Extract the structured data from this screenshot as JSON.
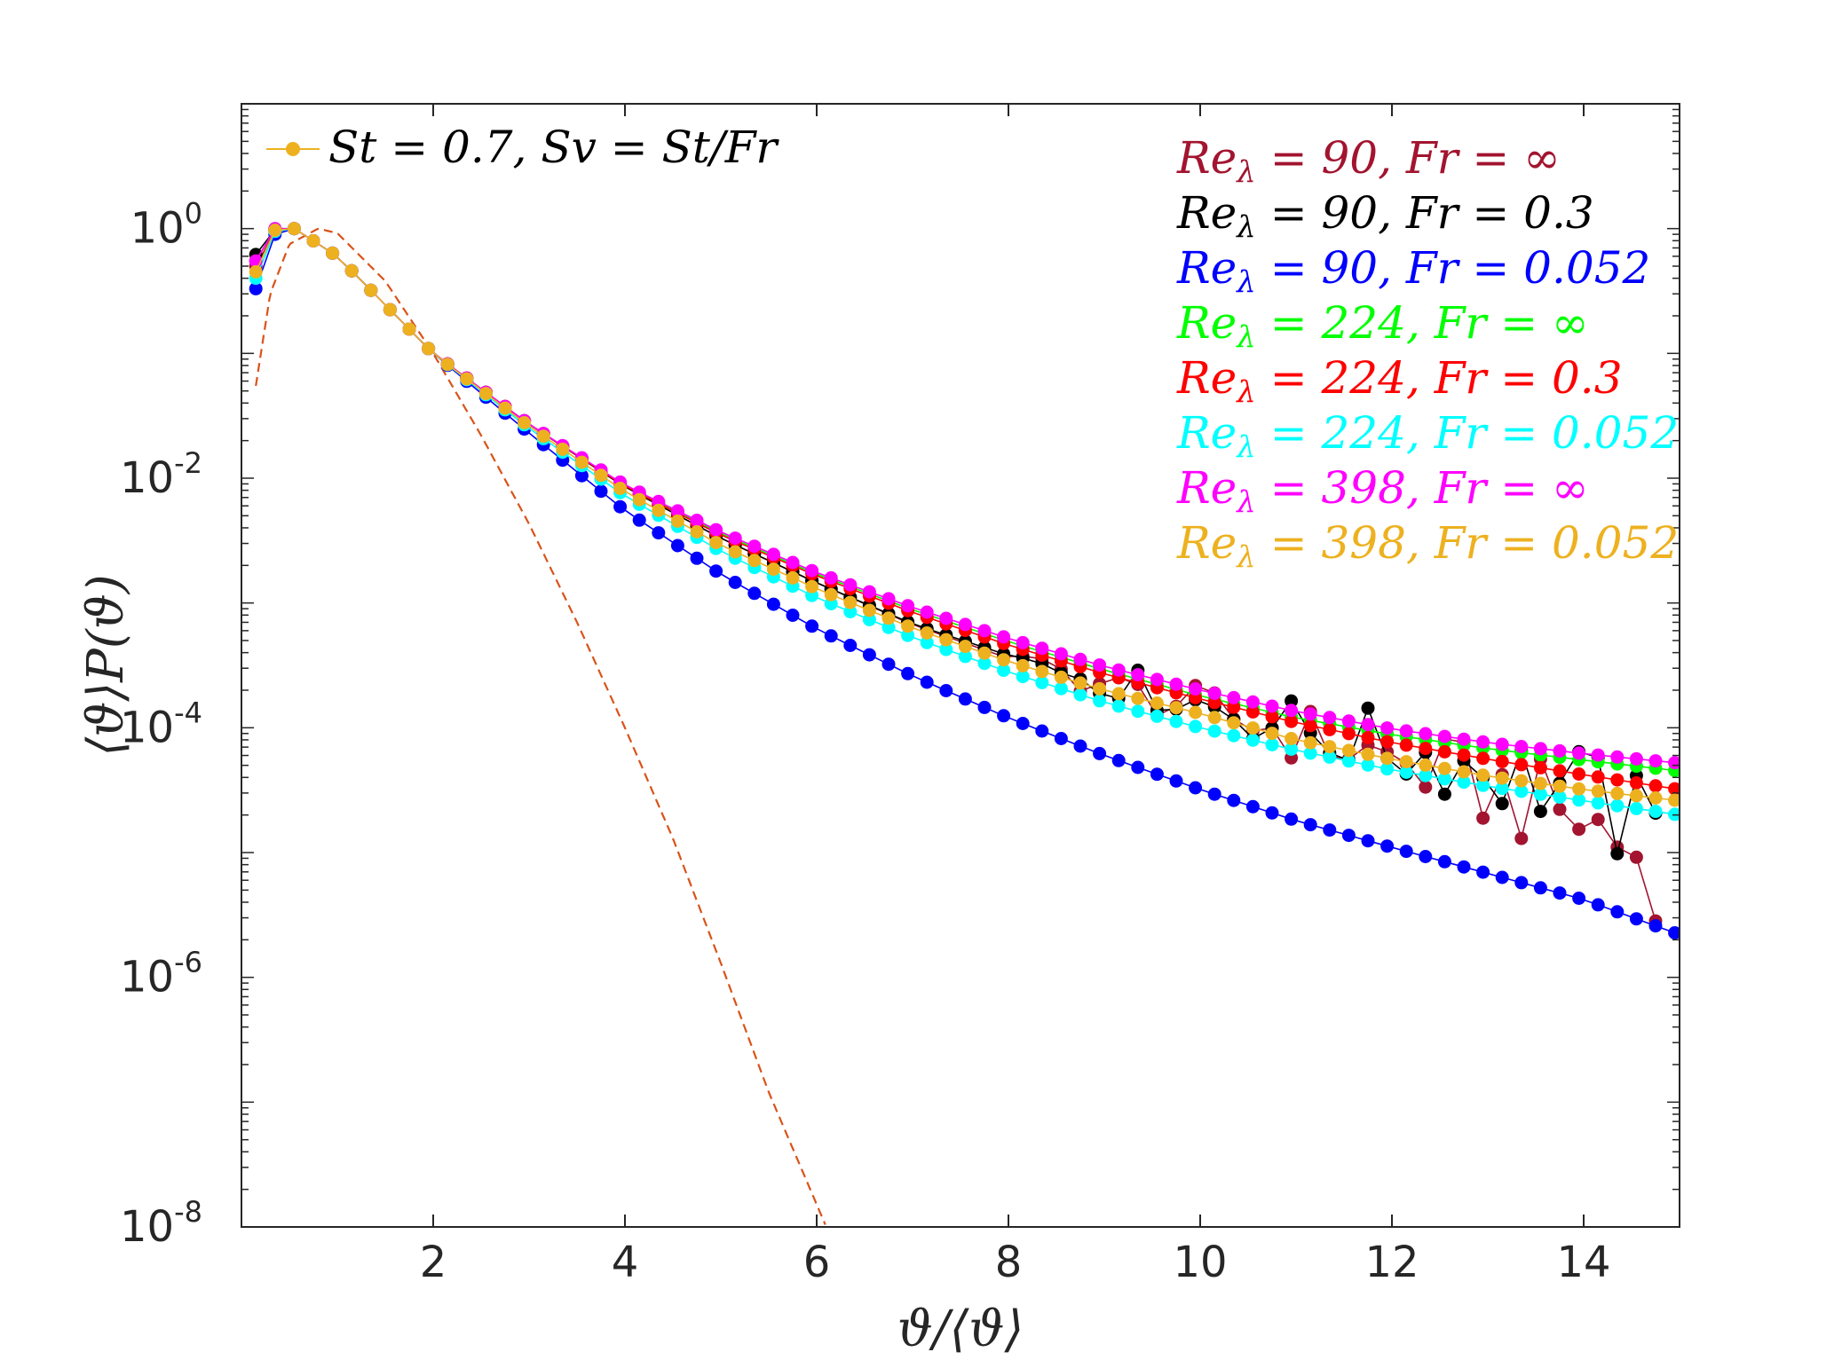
{
  "chart_data": {
    "type": "line",
    "xlabel": "ϑ/⟨ϑ⟩",
    "ylabel": "⟨ϑ⟩P(ϑ)",
    "xscale": "linear",
    "yscale": "log",
    "xlim": [
      0,
      15
    ],
    "ylim": [
      1e-08,
      10
    ],
    "grid": false,
    "box": true,
    "x_ticks": [
      "2",
      "4",
      "6",
      "8",
      "10",
      "12",
      "14"
    ],
    "y_ticks": [
      {
        "base": "10",
        "exp": "0"
      },
      {
        "base": "10",
        "exp": "-2"
      },
      {
        "base": "10",
        "exp": "-4"
      },
      {
        "base": "10",
        "exp": "-6"
      },
      {
        "base": "10",
        "exp": "-8"
      }
    ],
    "legend": {
      "position": "top-left",
      "entry": "St = 0.7, Sv = St/Fr",
      "color": "#EDB120"
    },
    "annotation_position": "top-right",
    "series": [
      {
        "name": "Re_λ = 90, Fr = ∞",
        "color": "#A2142F",
        "noisy": true,
        "anchors": [
          [
            0.15,
            0.5
          ],
          [
            0.35,
            0.95
          ],
          [
            0.55,
            1.0
          ],
          [
            1,
            0.6
          ],
          [
            2,
            0.1
          ],
          [
            3,
            0.027
          ],
          [
            4,
            0.0085
          ],
          [
            5,
            0.0033
          ],
          [
            6,
            0.00145
          ],
          [
            7,
            0.00067
          ],
          [
            8,
            0.00036
          ],
          [
            9,
            0.00022
          ],
          [
            10,
            0.00014
          ],
          [
            11,
            9e-05
          ],
          [
            12,
            5.5e-05
          ],
          [
            13,
            3.3e-05
          ],
          [
            14,
            1.8e-05
          ],
          [
            14.8,
            7.5e-06
          ]
        ]
      },
      {
        "name": "Re_λ = 90, Fr = 0.3",
        "color": "#000000",
        "noisy": true,
        "anchors": [
          [
            0.15,
            0.62
          ],
          [
            0.35,
            0.98
          ],
          [
            0.55,
            1.0
          ],
          [
            1,
            0.6
          ],
          [
            2,
            0.1
          ],
          [
            3,
            0.027
          ],
          [
            4,
            0.0085
          ],
          [
            5,
            0.0033
          ],
          [
            6,
            0.00145
          ],
          [
            7,
            0.00068
          ],
          [
            8,
            0.00038
          ],
          [
            9,
            0.00024
          ],
          [
            10,
            0.00016
          ],
          [
            11,
            0.0001
          ],
          [
            12,
            7e-05
          ],
          [
            13,
            4.8e-05
          ],
          [
            14,
            3e-05
          ],
          [
            14.8,
            1.2e-05
          ]
        ]
      },
      {
        "name": "Re_λ = 90, Fr = 0.052",
        "color": "#0000FF",
        "noisy": false,
        "anchors": [
          [
            0.15,
            0.33
          ],
          [
            0.35,
            0.9
          ],
          [
            0.55,
            1.0
          ],
          [
            1,
            0.6
          ],
          [
            2,
            0.1
          ],
          [
            3,
            0.023
          ],
          [
            4,
            0.0055
          ],
          [
            5,
            0.0017
          ],
          [
            6,
            0.00062
          ],
          [
            7,
            0.00026
          ],
          [
            8,
            0.00012
          ],
          [
            9,
            6e-05
          ],
          [
            10,
            3.2e-05
          ],
          [
            11,
            1.8e-05
          ],
          [
            12,
            1.1e-05
          ],
          [
            13,
            6.8e-06
          ],
          [
            14,
            4.2e-06
          ],
          [
            15,
            2.2e-06
          ]
        ]
      },
      {
        "name": "Re_λ = 224, Fr = ∞",
        "color": "#00FF00",
        "noisy": false,
        "anchors": [
          [
            0.15,
            0.55
          ],
          [
            0.35,
            1.0
          ],
          [
            0.55,
            1.0
          ],
          [
            1,
            0.6
          ],
          [
            2,
            0.1
          ],
          [
            3,
            0.027
          ],
          [
            4,
            0.0087
          ],
          [
            5,
            0.0036
          ],
          [
            6,
            0.0017
          ],
          [
            7,
            0.00088
          ],
          [
            8,
            0.00049
          ],
          [
            9,
            0.00029
          ],
          [
            10,
            0.00018
          ],
          [
            11,
            0.00012
          ],
          [
            12,
            8.8e-05
          ],
          [
            13,
            6.8e-05
          ],
          [
            14,
            5.5e-05
          ],
          [
            15,
            4.5e-05
          ]
        ]
      },
      {
        "name": "Re_λ = 224, Fr = 0.3",
        "color": "#FF0000",
        "noisy": false,
        "anchors": [
          [
            0.15,
            0.55
          ],
          [
            0.35,
            0.98
          ],
          [
            0.55,
            1.0
          ],
          [
            1,
            0.6
          ],
          [
            2,
            0.1
          ],
          [
            3,
            0.027
          ],
          [
            4,
            0.0086
          ],
          [
            5,
            0.0035
          ],
          [
            6,
            0.00165
          ],
          [
            7,
            0.00084
          ],
          [
            8,
            0.00046
          ],
          [
            9,
            0.00027
          ],
          [
            10,
            0.00017
          ],
          [
            11,
            0.00011
          ],
          [
            12,
            7.6e-05
          ],
          [
            13,
            5.6e-05
          ],
          [
            14,
            4.2e-05
          ],
          [
            15,
            3.2e-05
          ]
        ]
      },
      {
        "name": "Re_λ = 224, Fr = 0.052",
        "color": "#00FFFF",
        "noisy": false,
        "anchors": [
          [
            0.15,
            0.4
          ],
          [
            0.35,
            0.95
          ],
          [
            0.55,
            1.0
          ],
          [
            1,
            0.6
          ],
          [
            2,
            0.1
          ],
          [
            3,
            0.025
          ],
          [
            4,
            0.0072
          ],
          [
            5,
            0.0026
          ],
          [
            6,
            0.0011
          ],
          [
            7,
            0.00053
          ],
          [
            8,
            0.00028
          ],
          [
            9,
            0.00016
          ],
          [
            10,
            0.0001
          ],
          [
            11,
            6.6e-05
          ],
          [
            12,
            4.6e-05
          ],
          [
            13,
            3.4e-05
          ],
          [
            14,
            2.6e-05
          ],
          [
            15,
            2e-05
          ]
        ]
      },
      {
        "name": "Re_λ = 398, Fr = ∞",
        "color": "#FF00FF",
        "noisy": false,
        "anchors": [
          [
            0.15,
            0.55
          ],
          [
            0.35,
            1.0
          ],
          [
            0.55,
            1.0
          ],
          [
            1,
            0.6
          ],
          [
            2,
            0.1
          ],
          [
            3,
            0.027
          ],
          [
            4,
            0.0088
          ],
          [
            5,
            0.0037
          ],
          [
            6,
            0.00175
          ],
          [
            7,
            0.00092
          ],
          [
            8,
            0.00052
          ],
          [
            9,
            0.00031
          ],
          [
            10,
            0.0002
          ],
          [
            11,
            0.000135
          ],
          [
            12,
            9.8e-05
          ],
          [
            13,
            7.6e-05
          ],
          [
            14,
            6.2e-05
          ],
          [
            15,
            5.2e-05
          ]
        ]
      },
      {
        "name": "Re_λ = 398, Fr = 0.052",
        "color": "#EDB120",
        "noisy": false,
        "anchors": [
          [
            0.15,
            0.45
          ],
          [
            0.35,
            0.97
          ],
          [
            0.55,
            1.0
          ],
          [
            1,
            0.6
          ],
          [
            2,
            0.1
          ],
          [
            3,
            0.026
          ],
          [
            4,
            0.0078
          ],
          [
            5,
            0.0029
          ],
          [
            6,
            0.0013
          ],
          [
            7,
            0.00063
          ],
          [
            8,
            0.00034
          ],
          [
            9,
            0.0002
          ],
          [
            10,
            0.00013
          ],
          [
            11,
            8e-05
          ],
          [
            12,
            5.6e-05
          ],
          [
            13,
            4.1e-05
          ],
          [
            14,
            3.2e-05
          ],
          [
            15,
            2.6e-05
          ]
        ]
      }
    ],
    "reference_curve": {
      "style": "dashed",
      "color": "#D95319",
      "anchors": [
        [
          0.15,
          0.055
        ],
        [
          0.3,
          0.3
        ],
        [
          0.5,
          0.75
        ],
        [
          0.8,
          1.0
        ],
        [
          1.0,
          0.92
        ],
        [
          1.5,
          0.38
        ],
        [
          2,
          0.1
        ],
        [
          2.5,
          0.022
        ],
        [
          3,
          0.0043
        ],
        [
          3.5,
          0.0007
        ],
        [
          4,
          0.0001
        ],
        [
          4.5,
          1.3e-05
        ],
        [
          5,
          1.3e-06
        ],
        [
          5.5,
          1.2e-07
        ],
        [
          6.1,
          1e-08
        ]
      ]
    }
  }
}
